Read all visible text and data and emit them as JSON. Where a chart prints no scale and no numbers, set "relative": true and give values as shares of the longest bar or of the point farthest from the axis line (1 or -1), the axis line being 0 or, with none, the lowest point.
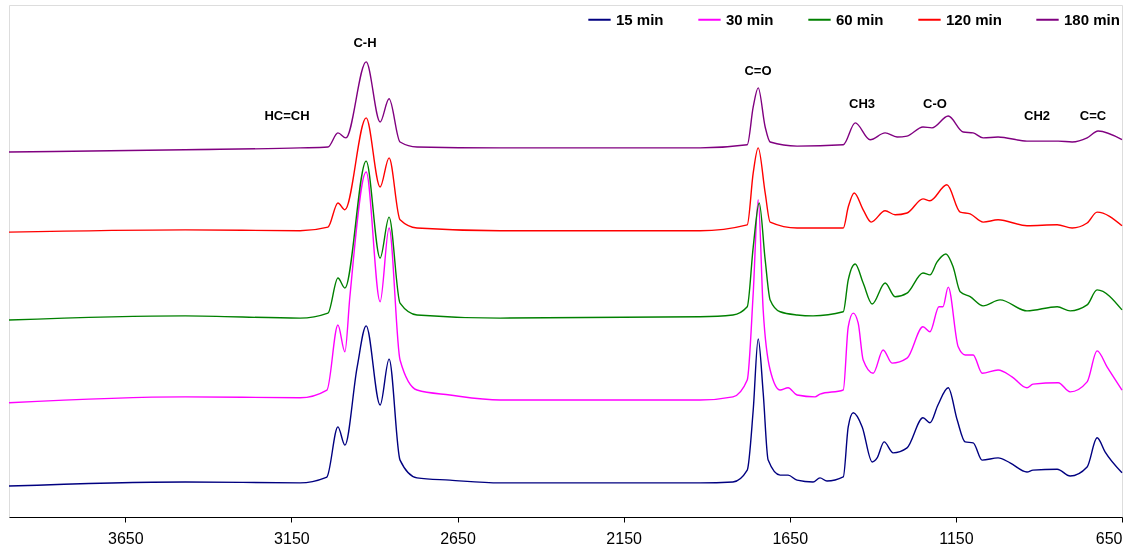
{
  "chart_data": {
    "type": "line",
    "relative": true,
    "xlim": [
      4000,
      650
    ],
    "xticks": [
      3650,
      3150,
      2650,
      2150,
      1650,
      1150,
      650
    ],
    "grid": false,
    "legend": "top right",
    "marker": "none",
    "line_style": "solid",
    "tick_labels": "x",
    "annotations": [
      "HC=CH",
      "C-H",
      "C=O",
      "CH3",
      "C-O",
      "CH2",
      "C=C"
    ],
    "series": [
      {
        "name": "15 min",
        "color": "#000080",
        "x": [
          4000,
          3470,
          3124,
          3049,
          3043,
          3010,
          2989,
          2952,
          2925,
          2883,
          2856,
          2823,
          2772,
          2673,
          2522,
          1920,
          1821,
          1778,
          1760,
          1745,
          1730,
          1715,
          1679,
          1655,
          1628,
          1580,
          1559,
          1538,
          1489,
          1474,
          1459,
          1432,
          1402,
          1387,
          1366,
          1339,
          1297,
          1249,
          1228,
          1204,
          1173,
          1146,
          1122,
          1098,
          1071,
          1023,
          987,
          936,
          918,
          845,
          806,
          755,
          725,
          701,
          650
        ],
        "values": [
          0.068,
          0.077,
          0.075,
          0.086,
          0.088,
          0.198,
          0.158,
          0.33,
          0.42,
          0.246,
          0.347,
          0.125,
          0.086,
          0.081,
          0.075,
          0.075,
          0.077,
          0.103,
          0.235,
          0.391,
          0.273,
          0.125,
          0.092,
          0.092,
          0.081,
          0.077,
          0.086,
          0.079,
          0.088,
          0.198,
          0.229,
          0.198,
          0.121,
          0.13,
          0.165,
          0.141,
          0.152,
          0.218,
          0.207,
          0.246,
          0.284,
          0.213,
          0.165,
          0.163,
          0.125,
          0.13,
          0.119,
          0.099,
          0.103,
          0.105,
          0.09,
          0.11,
          0.174,
          0.143,
          0.097
        ]
      },
      {
        "name": "30 min",
        "color": "#ff00ff",
        "x": [
          4000,
          3470,
          3124,
          3043,
          3010,
          2989,
          2974,
          2925,
          2883,
          2856,
          2823,
          2772,
          2673,
          2522,
          1920,
          1821,
          1778,
          1760,
          1745,
          1730,
          1709,
          1679,
          1655,
          1628,
          1574,
          1559,
          1489,
          1474,
          1459,
          1444,
          1429,
          1399,
          1369,
          1342,
          1297,
          1249,
          1228,
          1201,
          1189,
          1173,
          1143,
          1122,
          1098,
          1071,
          1023,
          981,
          936,
          918,
          842,
          806,
          755,
          725,
          695,
          650
        ],
        "values": [
          0.251,
          0.264,
          0.262,
          0.279,
          0.422,
          0.363,
          0.484,
          0.758,
          0.473,
          0.635,
          0.345,
          0.279,
          0.268,
          0.257,
          0.257,
          0.264,
          0.301,
          0.492,
          0.697,
          0.455,
          0.323,
          0.279,
          0.284,
          0.268,
          0.264,
          0.27,
          0.279,
          0.418,
          0.448,
          0.426,
          0.345,
          0.316,
          0.367,
          0.338,
          0.349,
          0.418,
          0.407,
          0.462,
          0.462,
          0.505,
          0.374,
          0.356,
          0.356,
          0.316,
          0.323,
          0.308,
          0.284,
          0.292,
          0.295,
          0.275,
          0.297,
          0.365,
          0.33,
          0.279
        ]
      },
      {
        "name": "60 min",
        "color": "#008000",
        "x": [
          4000,
          3470,
          3124,
          3040,
          3010,
          2989,
          2925,
          2883,
          2856,
          2823,
          2772,
          2522,
          1920,
          1821,
          1778,
          1760,
          1742,
          1724,
          1709,
          1679,
          1628,
          1580,
          1489,
          1474,
          1453,
          1429,
          1402,
          1363,
          1333,
          1297,
          1249,
          1228,
          1207,
          1180,
          1158,
          1137,
          1107,
          1068,
          1017,
          936,
          845,
          806,
          755,
          725,
          650
        ],
        "values": [
          0.433,
          0.442,
          0.437,
          0.448,
          0.525,
          0.503,
          0.782,
          0.569,
          0.659,
          0.47,
          0.444,
          0.437,
          0.44,
          0.444,
          0.462,
          0.593,
          0.69,
          0.565,
          0.477,
          0.451,
          0.444,
          0.442,
          0.451,
          0.521,
          0.556,
          0.514,
          0.468,
          0.514,
          0.484,
          0.492,
          0.536,
          0.532,
          0.56,
          0.578,
          0.549,
          0.495,
          0.484,
          0.464,
          0.477,
          0.453,
          0.462,
          0.453,
          0.466,
          0.499,
          0.455
        ]
      },
      {
        "name": "120 min",
        "color": "#ff0000",
        "x": [
          4000,
          3470,
          3124,
          3040,
          3010,
          2989,
          2925,
          2883,
          2856,
          2823,
          2772,
          2522,
          1920,
          1778,
          1760,
          1745,
          1724,
          1709,
          1628,
          1489,
          1474,
          1456,
          1429,
          1405,
          1363,
          1333,
          1297,
          1249,
          1228,
          1177,
          1137,
          1107,
          1068,
          1023,
          936,
          845,
          800,
          755,
          725,
          650
        ],
        "values": [
          0.626,
          0.631,
          0.629,
          0.637,
          0.69,
          0.675,
          0.877,
          0.725,
          0.789,
          0.653,
          0.635,
          0.629,
          0.629,
          0.642,
          0.756,
          0.811,
          0.712,
          0.648,
          0.635,
          0.635,
          0.681,
          0.712,
          0.675,
          0.648,
          0.673,
          0.664,
          0.668,
          0.699,
          0.695,
          0.73,
          0.67,
          0.666,
          0.648,
          0.653,
          0.64,
          0.642,
          0.635,
          0.646,
          0.67,
          0.64
        ]
      },
      {
        "name": "180 min",
        "color": "#800080",
        "x": [
          4000,
          3470,
          3124,
          3040,
          3010,
          2986,
          2925,
          2883,
          2856,
          2823,
          2772,
          2522,
          1920,
          1778,
          1760,
          1745,
          1724,
          1709,
          1628,
          1489,
          1453,
          1408,
          1363,
          1327,
          1297,
          1249,
          1222,
          1173,
          1128,
          1098,
          1068,
          1023,
          936,
          842,
          800,
          755,
          722,
          650
        ],
        "values": [
          0.802,
          0.807,
          0.811,
          0.813,
          0.844,
          0.833,
          1.0,
          0.868,
          0.919,
          0.824,
          0.813,
          0.811,
          0.811,
          0.818,
          0.901,
          0.943,
          0.857,
          0.824,
          0.815,
          0.818,
          0.866,
          0.829,
          0.844,
          0.835,
          0.837,
          0.857,
          0.855,
          0.881,
          0.846,
          0.844,
          0.833,
          0.835,
          0.826,
          0.826,
          0.824,
          0.833,
          0.848,
          0.829
        ]
      }
    ]
  }
}
